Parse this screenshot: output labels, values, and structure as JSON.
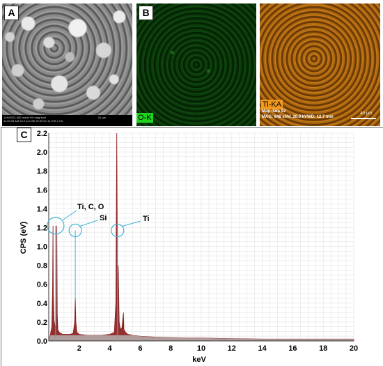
{
  "panels": {
    "a": {
      "letter": "A"
    },
    "b": {
      "letter": "B"
    },
    "c": {
      "letter": "C"
    }
  },
  "sem_image": {
    "info_row1": "12/6/2021   WD   mode   HV   mag   spot",
    "info_row2": "11:00:29 AM 13.2 mm   SE   20.00 kV 11 075 x  3.5",
    "scale_label": "10 μm"
  },
  "o_map": {
    "label": "O-K",
    "color": "#1ed41e"
  },
  "ti_map": {
    "label": "Ti-KA",
    "color": "#f29a1c",
    "map_data": "Map data 92",
    "mag_line": "MAG: 648 xHV: 20.0 kVWD: 12.7 mm",
    "scale_label": "40 μm"
  },
  "chart_data": {
    "type": "line",
    "title": "",
    "xlabel": "keV",
    "ylabel": "CPS (eV)",
    "xlim": [
      0,
      20
    ],
    "ylim": [
      0,
      2.2
    ],
    "x_ticks": [
      2,
      4,
      6,
      8,
      10,
      12,
      14,
      16,
      18,
      20
    ],
    "y_ticks": [
      0.0,
      0.2,
      0.4,
      0.6,
      0.8,
      1.0,
      1.2,
      1.4,
      1.6,
      1.8,
      2.0,
      2.2
    ],
    "y_tick_labels": [
      "0.0",
      "0.2",
      "0.4",
      "0.6",
      "0.8",
      "1.0",
      "1.2",
      "1.4",
      "1.6",
      "1.8",
      "2.0",
      "2.2"
    ],
    "x_tick_labels": [
      "2",
      "4",
      "6",
      "8",
      "10",
      "12",
      "14",
      "16",
      "18",
      "20"
    ],
    "grid": true,
    "series_color": "#8b1a1a",
    "series": [
      {
        "x": [
          0.0,
          0.1,
          0.2,
          0.25,
          0.28,
          0.3,
          0.35,
          0.4,
          0.45,
          0.5,
          0.53,
          0.56,
          0.6,
          0.65,
          0.7,
          0.75,
          0.8,
          0.9,
          1.0,
          1.2,
          1.4,
          1.6,
          1.7,
          1.74,
          1.78,
          1.85,
          2.0,
          2.5,
          3.0,
          3.5,
          4.0,
          4.3,
          4.4,
          4.46,
          4.51,
          4.56,
          4.62,
          4.7,
          4.8,
          4.9,
          4.93,
          5.0,
          5.1,
          5.2,
          5.5,
          6.0,
          7.0,
          8.0,
          9.0,
          10.0,
          12.0,
          14.0,
          16.0,
          18.0,
          20.0
        ],
        "values": [
          0.02,
          0.06,
          0.15,
          0.55,
          1.22,
          0.5,
          0.22,
          0.16,
          0.14,
          0.18,
          1.22,
          0.28,
          0.12,
          0.1,
          0.09,
          0.08,
          0.08,
          0.07,
          0.07,
          0.07,
          0.07,
          0.08,
          0.2,
          0.45,
          0.2,
          0.09,
          0.07,
          0.06,
          0.06,
          0.06,
          0.07,
          0.09,
          0.4,
          2.2,
          0.5,
          0.8,
          0.2,
          0.12,
          0.14,
          0.3,
          0.12,
          0.1,
          0.08,
          0.07,
          0.06,
          0.05,
          0.04,
          0.035,
          0.03,
          0.03,
          0.025,
          0.02,
          0.02,
          0.02,
          0.02
        ]
      }
    ],
    "annotations": [
      {
        "text": "Ti, C, O"
      },
      {
        "text": "Si"
      },
      {
        "text": "Ti"
      }
    ]
  }
}
